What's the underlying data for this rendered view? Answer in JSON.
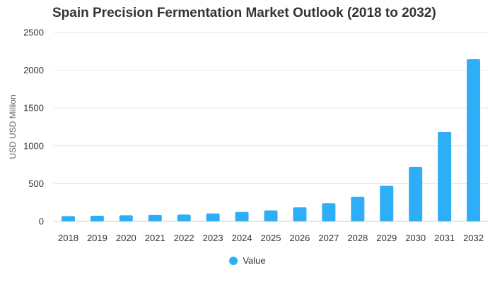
{
  "chart_data": {
    "type": "bar",
    "title": "Spain Precision Fermentation Market Outlook (2018 to 2032)",
    "xlabel": "",
    "ylabel": "USD USD Million",
    "categories": [
      "2018",
      "2019",
      "2020",
      "2021",
      "2022",
      "2023",
      "2024",
      "2025",
      "2026",
      "2027",
      "2028",
      "2029",
      "2030",
      "2031",
      "2032"
    ],
    "series": [
      {
        "name": "Value",
        "color": "#2FAEF8",
        "values": [
          70,
          75,
          80,
          85,
          90,
          105,
          125,
          145,
          185,
          240,
          325,
          470,
          720,
          1185,
          2145
        ]
      }
    ],
    "ylim": [
      0,
      2500
    ],
    "yticks": [
      0,
      500,
      1000,
      1500,
      2000,
      2500
    ],
    "grid": true,
    "legend_position": "bottom-center"
  }
}
